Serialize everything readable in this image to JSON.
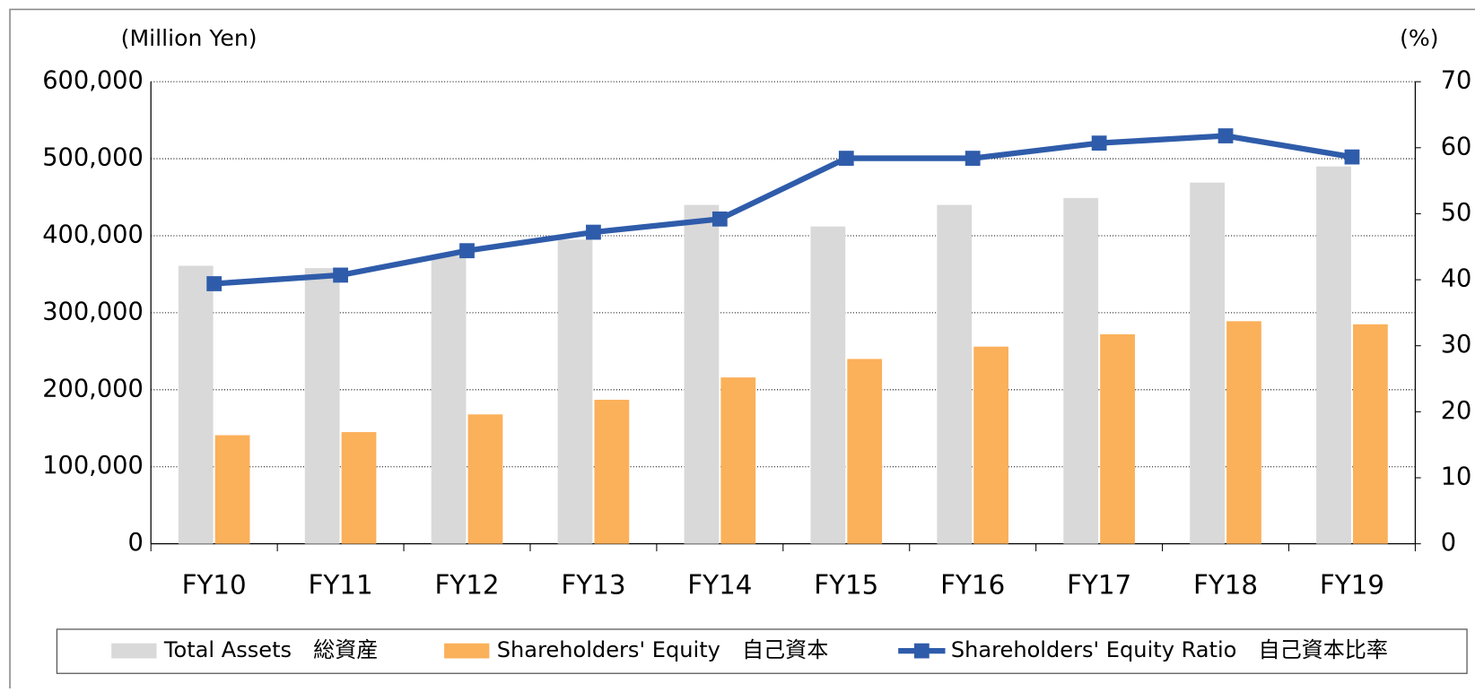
{
  "chart_data": {
    "type": "bar",
    "y_label": "(Million Yen)",
    "y2_label": "(%)",
    "categories": [
      "FY10",
      "FY11",
      "FY12",
      "FY13",
      "FY14",
      "FY15",
      "FY16",
      "FY17",
      "FY18",
      "FY19"
    ],
    "series": [
      {
        "name": "Total Assets　総資産",
        "color": "#d9d9d9",
        "values": [
          361000,
          358000,
          375000,
          395000,
          440000,
          412000,
          440000,
          449000,
          469000,
          490000
        ]
      },
      {
        "name": "Shareholders' Equity　自己資本",
        "color": "#fbb05a",
        "values": [
          141000,
          145000,
          168000,
          187000,
          216000,
          240000,
          256000,
          272000,
          289000,
          285000
        ]
      },
      {
        "name": "Shareholders' Equity Ratio　自己資本比率",
        "color": "#2f5caa",
        "type": "line",
        "axis": "y2",
        "values": [
          39.4,
          40.7,
          44.4,
          47.2,
          49.2,
          58.4,
          58.4,
          60.7,
          61.8,
          58.6
        ]
      }
    ],
    "ylim": [
      0,
      600000
    ],
    "yticks": [
      0,
      {
        "value": 100000,
        "label": "100,000"
      },
      {
        "value": 200000,
        "label": "200,000"
      },
      {
        "value": 300000,
        "label": "300,000"
      },
      {
        "value": 400000,
        "label": "400,000"
      },
      {
        "value": 500000,
        "label": "500,000"
      },
      {
        "value": 600000,
        "label": "600,000"
      }
    ],
    "y2lim": [
      0,
      70
    ],
    "y2ticks": [
      0,
      10,
      20,
      30,
      40,
      50,
      60,
      70
    ],
    "grid": true,
    "legend": "bottom"
  }
}
